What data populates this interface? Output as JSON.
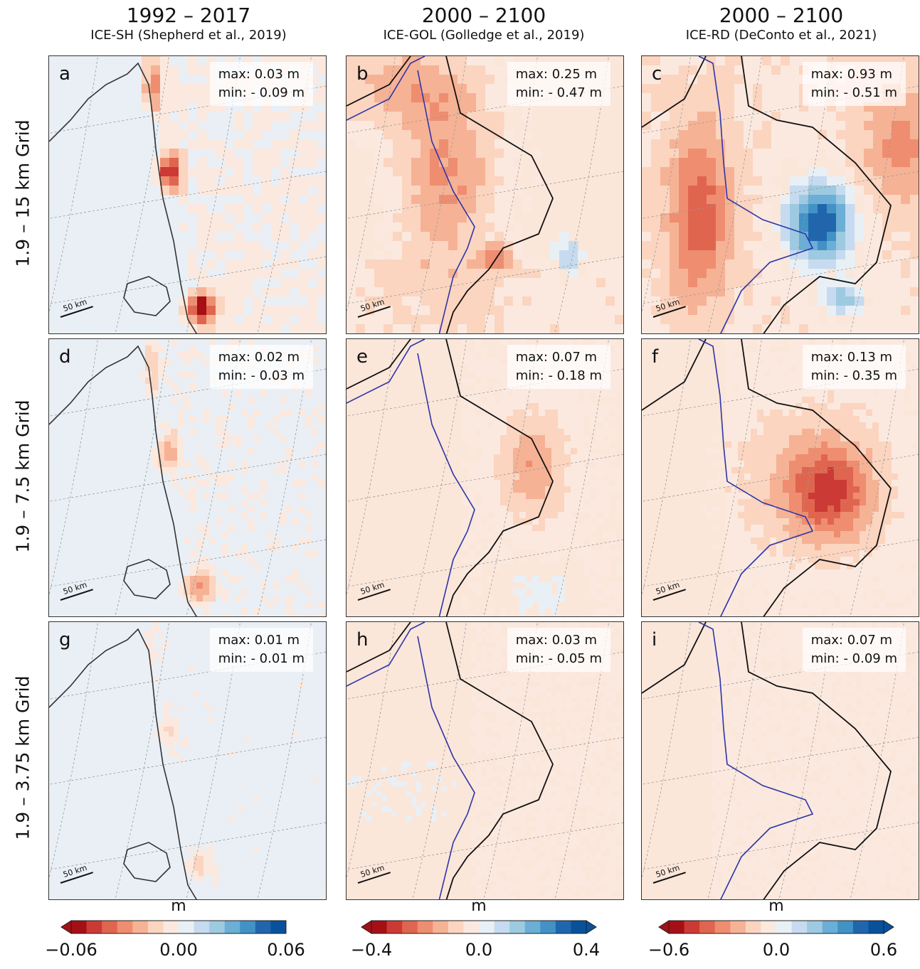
{
  "chart_data": {
    "type": "heatmap",
    "unit": "m",
    "columns": [
      {
        "period": "1992 – 2017",
        "source": "ICE-SH (Shepherd et al., 2019)"
      },
      {
        "period": "2000 – 2100",
        "source": "ICE-GOL (Golledge et al., 2019)"
      },
      {
        "period": "2000 – 2100",
        "source": "ICE-RD (DeConto et al., 2021)"
      }
    ],
    "rows": [
      "1.9 – 15 km Grid",
      "1.9 – 7.5 km Grid",
      "1.9 – 3.75 km Grid"
    ],
    "panels": [
      {
        "letter": "a",
        "max": "max: 0.03 m",
        "min": "min: - 0.09 m",
        "scale_label": "50 km"
      },
      {
        "letter": "b",
        "max": "max: 0.25 m",
        "min": "min: - 0.47 m",
        "scale_label": "50 km"
      },
      {
        "letter": "c",
        "max": "max: 0.93 m",
        "min": "min: - 0.51 m",
        "scale_label": "50 km"
      },
      {
        "letter": "d",
        "max": "max: 0.02 m",
        "min": "min: - 0.03 m",
        "scale_label": "50 km"
      },
      {
        "letter": "e",
        "max": "max: 0.07 m",
        "min": "min: - 0.18 m",
        "scale_label": "50 km"
      },
      {
        "letter": "f",
        "max": "max: 0.13 m",
        "min": "min: - 0.35 m",
        "scale_label": "50 km"
      },
      {
        "letter": "g",
        "max": "max: 0.01 m",
        "min": "min: - 0.01 m",
        "scale_label": "50 km"
      },
      {
        "letter": "h",
        "max": "max: 0.03 m",
        "min": "min: - 0.05 m",
        "scale_label": "50 km"
      },
      {
        "letter": "i",
        "max": "max: 0.07 m",
        "min": "min: - 0.09 m",
        "scale_label": "50 km"
      }
    ],
    "colorbars": [
      {
        "unit": "m",
        "range": [
          -0.06,
          0.06
        ],
        "ticks": [
          "−0.06",
          "0.00",
          "0.06"
        ],
        "extend": "min"
      },
      {
        "unit": "m",
        "range": [
          -0.4,
          0.4
        ],
        "ticks": [
          "−0.4",
          "0.0",
          "0.4"
        ],
        "extend": "both"
      },
      {
        "unit": "m",
        "range": [
          -0.6,
          0.6
        ],
        "ticks": [
          "−0.6",
          "0.0",
          "0.6"
        ],
        "extend": "both"
      }
    ],
    "colormap": [
      "#a50f15",
      "#cb3a35",
      "#e0654f",
      "#ef8d70",
      "#f6b295",
      "#fbd5c0",
      "#fbe9df",
      "#e8f0f6",
      "#c6dbef",
      "#9ecae1",
      "#6baed6",
      "#4292c6",
      "#2166ac",
      "#08519c"
    ]
  }
}
